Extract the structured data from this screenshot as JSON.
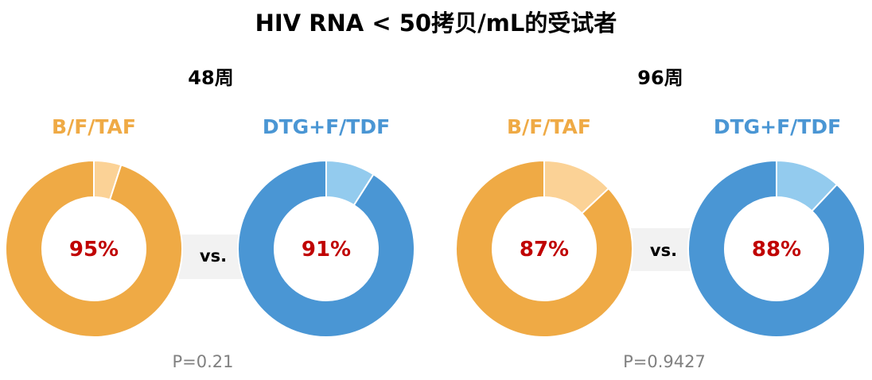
{
  "chart_data": {
    "type": "pie",
    "title": "HIV RNA < 50拷贝/mL的受试者",
    "colors": {
      "bftaf": "#EFAA45",
      "bftaf_light": "#FBD296",
      "dtg": "#4A96D4",
      "dtg_light": "#93CBEE",
      "pct": "#C00000"
    },
    "groups": [
      {
        "week": "48周",
        "vs": "vs.",
        "p_value": "P=0.21",
        "arms": [
          {
            "name": "B/F/TAF",
            "value": 95,
            "label": "95%",
            "color": "#EFAA45",
            "light": "#FBD296"
          },
          {
            "name": "DTG+F/TDF",
            "value": 91,
            "label": "91%",
            "color": "#4A96D4",
            "light": "#93CBEE"
          }
        ]
      },
      {
        "week": "96周",
        "vs": "vs.",
        "p_value": "P=0.9427",
        "arms": [
          {
            "name": "B/F/TAF",
            "value": 87,
            "label": "87%",
            "color": "#EFAA45",
            "light": "#FBD296"
          },
          {
            "name": "DTG+F/TDF",
            "value": 88,
            "label": "88%",
            "color": "#4A96D4",
            "light": "#93CBEE"
          }
        ]
      }
    ]
  }
}
